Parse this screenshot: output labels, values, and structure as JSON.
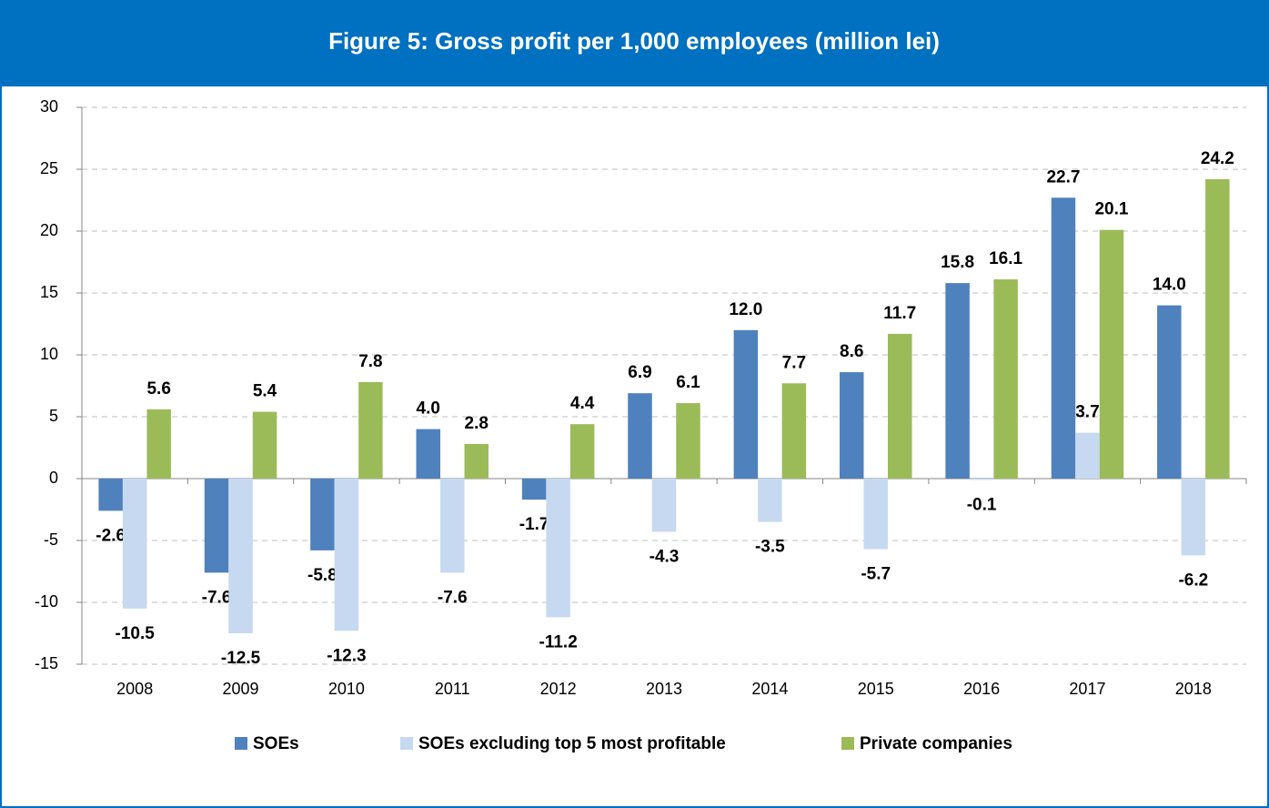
{
  "chart_data": {
    "type": "bar",
    "title": "Figure 5: Gross profit per 1,000 employees (million lei)",
    "categories": [
      "2008",
      "2009",
      "2010",
      "2011",
      "2012",
      "2013",
      "2014",
      "2015",
      "2016",
      "2017",
      "2018"
    ],
    "series": [
      {
        "name": "SOEs",
        "color": "#4f81bd",
        "values": [
          -2.6,
          -7.6,
          -5.8,
          4.0,
          -1.7,
          6.9,
          12.0,
          8.6,
          15.8,
          22.7,
          14.0
        ],
        "value_labels": [
          "-2.6",
          "-7.6",
          "-5.8",
          "4.0",
          "-1.7",
          "6.9",
          "12.0",
          "8.6",
          "15.8",
          "22.7",
          "14.0"
        ]
      },
      {
        "name": "SOEs excluding top 5 most profitable",
        "color": "#c6d9f1",
        "values": [
          -10.5,
          -12.5,
          -12.3,
          -7.6,
          -11.2,
          -4.3,
          -3.5,
          -5.7,
          -0.1,
          3.7,
          -6.2
        ],
        "value_labels": [
          "-10.5",
          "-12.5",
          "-12.3",
          "-7.6",
          "-11.2",
          "-4.3",
          "-3.5",
          "-5.7",
          "-0.1",
          "3.7",
          "-6.2"
        ]
      },
      {
        "name": "Private companies",
        "color": "#9bbb59",
        "values": [
          5.6,
          5.4,
          7.8,
          2.8,
          4.4,
          6.1,
          7.7,
          11.7,
          16.1,
          20.1,
          24.2
        ],
        "value_labels": [
          "5.6",
          "5.4",
          "7.8",
          "2.8",
          "4.4",
          "6.1",
          "7.7",
          "11.7",
          "16.1",
          "20.1",
          "24.2"
        ]
      }
    ],
    "ylim": [
      -15,
      30
    ],
    "yticks": [
      -15,
      -10,
      -5,
      0,
      5,
      10,
      15,
      20,
      25,
      30
    ],
    "grid": true,
    "legend": "bottom",
    "header_color": "#0070c0"
  }
}
